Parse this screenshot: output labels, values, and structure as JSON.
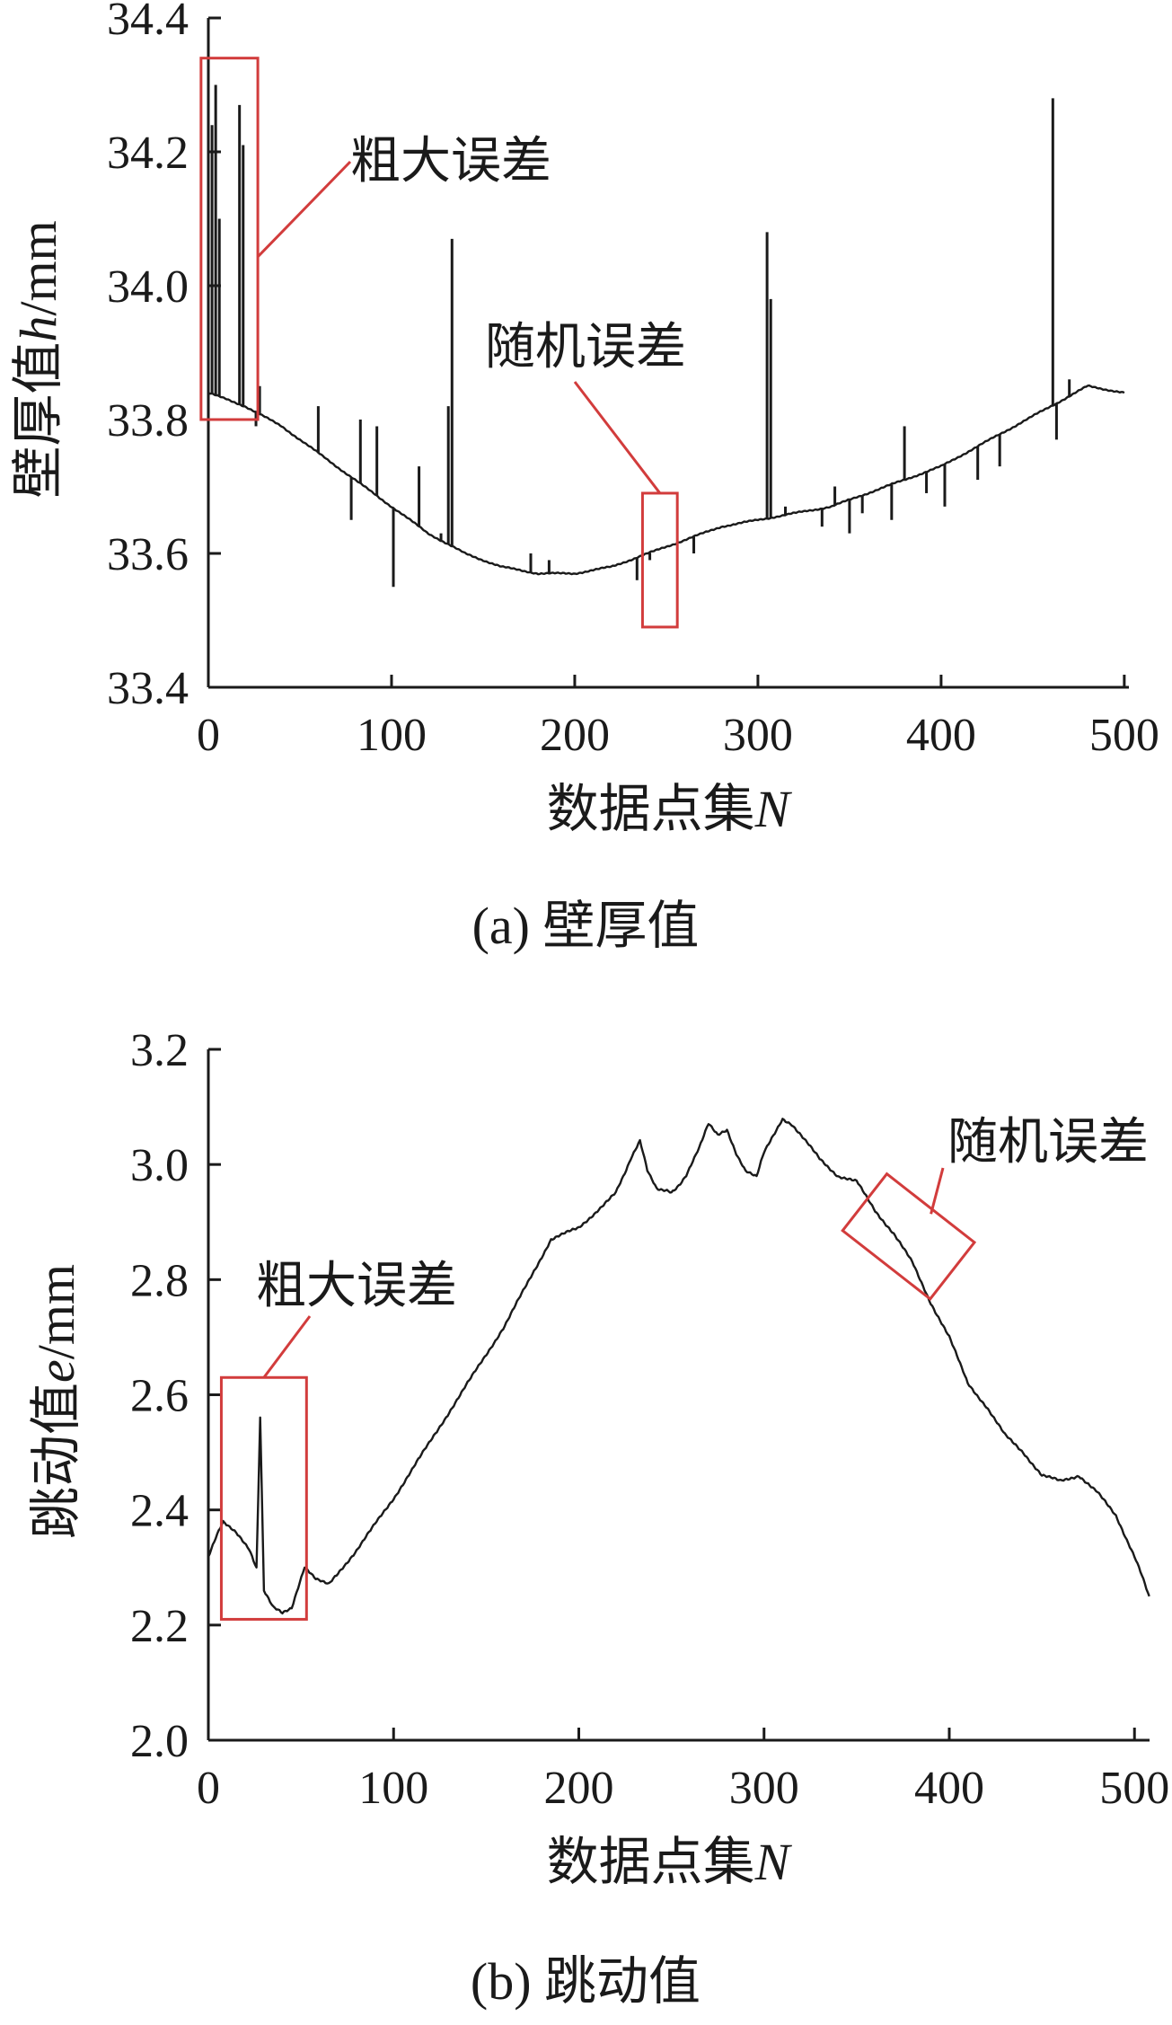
{
  "chart_data": [
    {
      "type": "line",
      "panel": "(a)",
      "caption": "(a) 壁厚值",
      "xlabel_main": "数据点集",
      "xlabel_var": "N",
      "ylabel_main": "壁厚值",
      "ylabel_var": "h",
      "ylabel_unit": "/mm",
      "xlim": [
        0,
        500
      ],
      "ylim": [
        33.4,
        34.4
      ],
      "xticks": [
        "0",
        "100",
        "200",
        "300",
        "400",
        "500"
      ],
      "yticks": [
        "33.4",
        "33.6",
        "33.8",
        "34.0",
        "34.2",
        "34.4"
      ],
      "trend": {
        "x": [
          0,
          20,
          40,
          60,
          80,
          100,
          120,
          140,
          160,
          180,
          200,
          220,
          240,
          260,
          280,
          300,
          320,
          340,
          360,
          380,
          400,
          420,
          440,
          460,
          480,
          500
        ],
        "y": [
          33.84,
          33.82,
          33.79,
          33.75,
          33.71,
          33.67,
          33.63,
          33.6,
          33.58,
          33.57,
          33.57,
          33.58,
          33.6,
          33.62,
          33.64,
          33.65,
          33.66,
          33.67,
          33.69,
          33.71,
          33.73,
          33.76,
          33.79,
          33.82,
          33.85,
          33.84
        ]
      },
      "spikes": [
        {
          "x": 2,
          "y": 34.24
        },
        {
          "x": 4,
          "y": 34.3
        },
        {
          "x": 6,
          "y": 34.1
        },
        {
          "x": 17,
          "y": 34.27
        },
        {
          "x": 19,
          "y": 34.21
        },
        {
          "x": 26,
          "y": 33.79
        },
        {
          "x": 28,
          "y": 33.85
        },
        {
          "x": 60,
          "y": 33.82
        },
        {
          "x": 78,
          "y": 33.65
        },
        {
          "x": 83,
          "y": 33.8
        },
        {
          "x": 92,
          "y": 33.79
        },
        {
          "x": 101,
          "y": 33.55
        },
        {
          "x": 115,
          "y": 33.73
        },
        {
          "x": 127,
          "y": 33.63
        },
        {
          "x": 131,
          "y": 33.82
        },
        {
          "x": 133,
          "y": 34.07
        },
        {
          "x": 176,
          "y": 33.6
        },
        {
          "x": 186,
          "y": 33.59
        },
        {
          "x": 234,
          "y": 33.56
        },
        {
          "x": 241,
          "y": 33.59
        },
        {
          "x": 265,
          "y": 33.6
        },
        {
          "x": 305,
          "y": 34.08
        },
        {
          "x": 307,
          "y": 33.98
        },
        {
          "x": 315,
          "y": 33.67
        },
        {
          "x": 335,
          "y": 33.64
        },
        {
          "x": 342,
          "y": 33.7
        },
        {
          "x": 350,
          "y": 33.63
        },
        {
          "x": 357,
          "y": 33.66
        },
        {
          "x": 373,
          "y": 33.65
        },
        {
          "x": 380,
          "y": 33.79
        },
        {
          "x": 392,
          "y": 33.69
        },
        {
          "x": 402,
          "y": 33.67
        },
        {
          "x": 420,
          "y": 33.71
        },
        {
          "x": 432,
          "y": 33.73
        },
        {
          "x": 461,
          "y": 34.28
        },
        {
          "x": 463,
          "y": 33.77
        },
        {
          "x": 470,
          "y": 33.86
        }
      ],
      "annotations": [
        {
          "label": "粗大误差",
          "box_x": [
            -4,
            27
          ],
          "box_y": [
            33.8,
            34.34
          ]
        },
        {
          "label": "随机误差",
          "box_x": [
            237,
            256
          ],
          "box_y": [
            33.49,
            33.69
          ]
        }
      ]
    },
    {
      "type": "line",
      "panel": "(b)",
      "caption": "(b) 跳动值",
      "xlabel_main": "数据点集",
      "xlabel_var": "N",
      "ylabel_main": "跳动值",
      "ylabel_var": "e",
      "ylabel_unit": "/mm",
      "xlim": [
        0,
        500
      ],
      "ylim": [
        2.0,
        3.2
      ],
      "xticks": [
        "0",
        "100",
        "200",
        "300",
        "400",
        "500"
      ],
      "yticks": [
        "2.0",
        "2.2",
        "2.4",
        "2.6",
        "2.8",
        "3.0",
        "3.2"
      ],
      "trend": {
        "x": [
          0,
          8,
          15,
          22,
          26,
          28,
          30,
          35,
          40,
          45,
          52,
          58,
          65,
          80,
          100,
          120,
          140,
          160,
          175,
          185,
          200,
          210,
          220,
          228,
          233,
          237,
          242,
          250,
          258,
          265,
          270,
          275,
          280,
          285,
          290,
          296,
          300,
          305,
          310,
          315,
          320,
          330,
          340,
          350,
          360,
          370,
          380,
          390,
          400,
          410,
          420,
          430,
          440,
          450,
          460,
          470,
          480,
          490,
          500,
          508
        ],
        "y": [
          2.32,
          2.38,
          2.36,
          2.33,
          2.3,
          2.56,
          2.26,
          2.23,
          2.22,
          2.23,
          2.3,
          2.28,
          2.27,
          2.33,
          2.42,
          2.52,
          2.62,
          2.72,
          2.81,
          2.87,
          2.89,
          2.92,
          2.95,
          3.01,
          3.04,
          2.99,
          2.96,
          2.95,
          2.98,
          3.03,
          3.07,
          3.05,
          3.06,
          3.02,
          2.99,
          2.98,
          3.02,
          3.05,
          3.08,
          3.07,
          3.05,
          3.01,
          2.98,
          2.97,
          2.92,
          2.88,
          2.83,
          2.76,
          2.7,
          2.62,
          2.58,
          2.53,
          2.5,
          2.46,
          2.45,
          2.46,
          2.43,
          2.39,
          2.32,
          2.25
        ]
      },
      "annotations": [
        {
          "label": "粗大误差",
          "box_x": [
            7,
            53
          ],
          "box_y": [
            2.21,
            2.63
          ]
        },
        {
          "label": "随机误差",
          "box_x": [
            348,
            408
          ],
          "box_y": [
            2.77,
            2.98
          ],
          "rotated": true
        }
      ]
    }
  ]
}
